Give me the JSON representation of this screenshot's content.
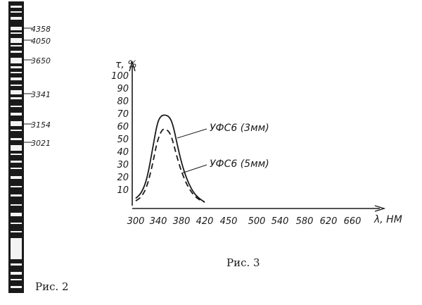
{
  "fig2": {
    "caption": "Рис. 2",
    "lines": [
      "4358",
      "4050",
      "3650",
      "3341",
      "3154",
      "3021"
    ]
  },
  "fig3": {
    "caption": "Рис. 3"
  },
  "chart_data": {
    "type": "line",
    "ylabel": "τ, %",
    "xlabel": "λ, НМ",
    "x_ticks": [
      300,
      340,
      380,
      420,
      450,
      500,
      540,
      580,
      620,
      660
    ],
    "y_ticks": [
      10,
      20,
      30,
      40,
      50,
      60,
      70,
      80,
      90,
      100
    ],
    "series": [
      {
        "name": "УФС6 (3мм)",
        "style": "solid",
        "points": [
          [
            300,
            3
          ],
          [
            310,
            7
          ],
          [
            320,
            18
          ],
          [
            330,
            42
          ],
          [
            338,
            62
          ],
          [
            344,
            68
          ],
          [
            352,
            69
          ],
          [
            360,
            67
          ],
          [
            366,
            60
          ],
          [
            372,
            47
          ],
          [
            380,
            31
          ],
          [
            390,
            17
          ],
          [
            400,
            8
          ],
          [
            410,
            3
          ],
          [
            420,
            0
          ]
        ]
      },
      {
        "name": "УФС6 (5мм)",
        "style": "dashed",
        "points": [
          [
            300,
            1
          ],
          [
            310,
            4
          ],
          [
            320,
            12
          ],
          [
            330,
            30
          ],
          [
            338,
            48
          ],
          [
            346,
            57
          ],
          [
            352,
            58
          ],
          [
            360,
            55
          ],
          [
            366,
            47
          ],
          [
            372,
            36
          ],
          [
            380,
            24
          ],
          [
            390,
            13
          ],
          [
            400,
            6
          ],
          [
            410,
            2
          ],
          [
            420,
            0
          ]
        ]
      }
    ]
  }
}
